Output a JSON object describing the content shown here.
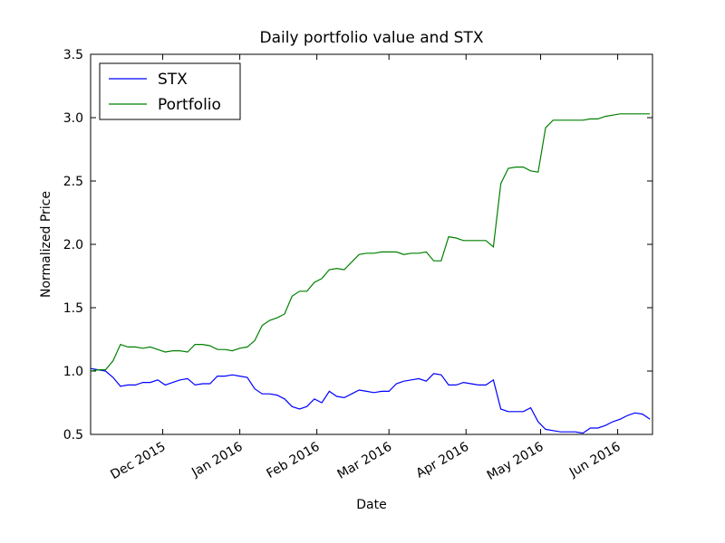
{
  "chart_data": {
    "type": "line",
    "title": "Daily portfolio value and STX",
    "xlabel": "Date",
    "ylabel": "Normalized Price",
    "x": [
      "2015-11-02",
      "2015-11-05",
      "2015-11-08",
      "2015-11-11",
      "2015-11-14",
      "2015-11-17",
      "2015-11-20",
      "2015-11-23",
      "2015-11-26",
      "2015-11-29",
      "2015-12-02",
      "2015-12-05",
      "2015-12-08",
      "2015-12-11",
      "2015-12-14",
      "2015-12-17",
      "2015-12-20",
      "2015-12-23",
      "2015-12-26",
      "2015-12-29",
      "2016-01-01",
      "2016-01-04",
      "2016-01-07",
      "2016-01-10",
      "2016-01-13",
      "2016-01-16",
      "2016-01-19",
      "2016-01-22",
      "2016-01-25",
      "2016-01-28",
      "2016-01-31",
      "2016-02-03",
      "2016-02-06",
      "2016-02-09",
      "2016-02-12",
      "2016-02-15",
      "2016-02-18",
      "2016-02-21",
      "2016-02-24",
      "2016-02-27",
      "2016-03-01",
      "2016-03-04",
      "2016-03-07",
      "2016-03-10",
      "2016-03-13",
      "2016-03-16",
      "2016-03-19",
      "2016-03-22",
      "2016-03-25",
      "2016-03-28",
      "2016-03-31",
      "2016-04-03",
      "2016-04-06",
      "2016-04-09",
      "2016-04-12",
      "2016-04-15",
      "2016-04-18",
      "2016-04-21",
      "2016-04-24",
      "2016-04-27",
      "2016-04-30",
      "2016-05-03",
      "2016-05-06",
      "2016-05-09",
      "2016-05-12",
      "2016-05-15",
      "2016-05-18",
      "2016-05-21",
      "2016-05-24",
      "2016-05-27",
      "2016-05-30",
      "2016-06-02",
      "2016-06-05",
      "2016-06-08",
      "2016-06-11",
      "2016-06-14"
    ],
    "series": [
      {
        "name": "STX",
        "color": "#0000ff",
        "values": [
          1.02,
          1.01,
          1.0,
          0.95,
          0.88,
          0.89,
          0.89,
          0.91,
          0.91,
          0.93,
          0.89,
          0.91,
          0.93,
          0.94,
          0.89,
          0.9,
          0.9,
          0.96,
          0.96,
          0.97,
          0.96,
          0.95,
          0.86,
          0.82,
          0.82,
          0.81,
          0.78,
          0.72,
          0.7,
          0.72,
          0.78,
          0.75,
          0.84,
          0.8,
          0.79,
          0.82,
          0.85,
          0.84,
          0.83,
          0.84,
          0.84,
          0.9,
          0.92,
          0.93,
          0.94,
          0.92,
          0.98,
          0.97,
          0.89,
          0.89,
          0.91,
          0.9,
          0.89,
          0.89,
          0.93,
          0.7,
          0.68,
          0.68,
          0.68,
          0.71,
          0.6,
          0.54,
          0.53,
          0.52,
          0.52,
          0.52,
          0.51,
          0.55,
          0.55,
          0.57,
          0.6,
          0.62,
          0.65,
          0.67,
          0.66,
          0.62
        ]
      },
      {
        "name": "Portfolio",
        "color": "#008000",
        "values": [
          1.0,
          1.01,
          1.01,
          1.08,
          1.21,
          1.19,
          1.19,
          1.18,
          1.19,
          1.17,
          1.15,
          1.16,
          1.16,
          1.15,
          1.21,
          1.21,
          1.2,
          1.17,
          1.17,
          1.16,
          1.18,
          1.19,
          1.24,
          1.36,
          1.4,
          1.42,
          1.45,
          1.59,
          1.63,
          1.63,
          1.7,
          1.73,
          1.8,
          1.81,
          1.8,
          1.86,
          1.92,
          1.93,
          1.93,
          1.94,
          1.94,
          1.94,
          1.92,
          1.93,
          1.93,
          1.94,
          1.87,
          1.87,
          2.06,
          2.05,
          2.03,
          2.03,
          2.03,
          2.03,
          1.98,
          2.48,
          2.6,
          2.61,
          2.61,
          2.58,
          2.57,
          2.92,
          2.98,
          2.98,
          2.98,
          2.98,
          2.98,
          2.99,
          2.99,
          3.01,
          3.02,
          3.03,
          3.03,
          3.03,
          3.03,
          3.03
        ]
      }
    ],
    "xlim": [
      "2015-11-02",
      "2016-06-15"
    ],
    "xticks": [
      {
        "value": "2015-12-01",
        "label": "Dec 2015"
      },
      {
        "value": "2016-01-01",
        "label": "Jan 2016"
      },
      {
        "value": "2016-02-01",
        "label": "Feb 2016"
      },
      {
        "value": "2016-03-01",
        "label": "Mar 2016"
      },
      {
        "value": "2016-04-01",
        "label": "Apr 2016"
      },
      {
        "value": "2016-05-01",
        "label": "May 2016"
      },
      {
        "value": "2016-06-01",
        "label": "Jun 2016"
      }
    ],
    "ylim": [
      0.5,
      3.5
    ],
    "yticks": [
      0.5,
      {
        "value": 1,
        "label": "1.0"
      },
      1.5,
      {
        "value": 2,
        "label": "2.0"
      },
      2.5,
      {
        "value": 3,
        "label": "3.0"
      },
      3.5
    ],
    "legend": "upper left",
    "grid": false
  }
}
